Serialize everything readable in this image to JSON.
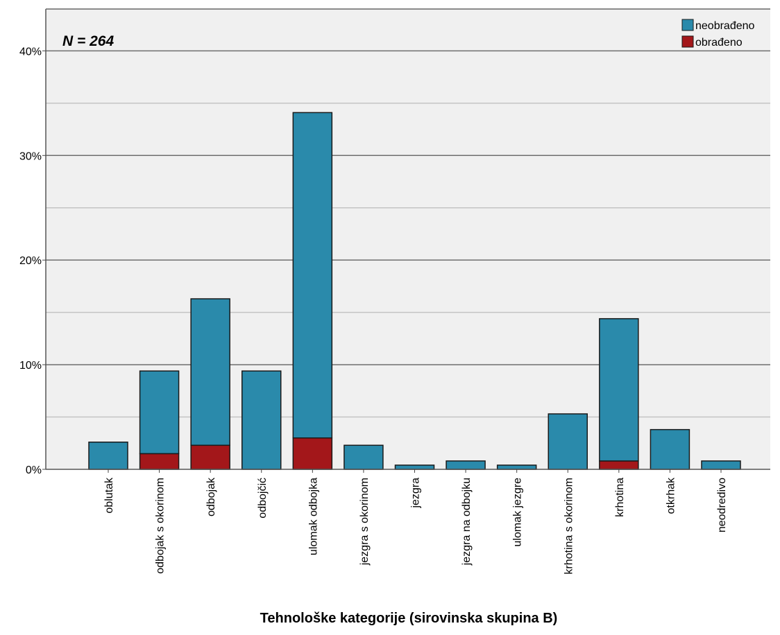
{
  "chart_data": {
    "type": "bar",
    "stacked": true,
    "annotation": "N = 264",
    "xlabel": "Tehnološke kategorije (sirovinska skupina B)",
    "ylabel": "",
    "ylim": [
      0,
      44
    ],
    "y_ticks": [
      0,
      10,
      20,
      30,
      40
    ],
    "y_tick_labels": [
      "0%",
      "10%",
      "20%",
      "30%",
      "40%"
    ],
    "grid": true,
    "legend_position": "top-right",
    "categories": [
      "oblutak",
      "odbojak s okorinom",
      "odbojak",
      "odbojčić",
      "ulomak odbojka",
      "jezgra s okorinom",
      "jezgra",
      "jezgra na odbojku",
      "ulomak jezgre",
      "krhotina s okorinom",
      "krhotina",
      "otkrhak",
      "neodredivo"
    ],
    "series": [
      {
        "name": "obrađeno",
        "color": "#a3171a",
        "values": [
          0,
          1.5,
          2.3,
          0,
          3.0,
          0,
          0,
          0,
          0,
          0,
          0.8,
          0,
          0
        ]
      },
      {
        "name": "neobrađeno",
        "color": "#2a8aab",
        "values": [
          2.6,
          7.9,
          14.0,
          9.4,
          31.1,
          2.3,
          0.4,
          0.8,
          0.4,
          5.3,
          13.6,
          3.8,
          0.8
        ]
      }
    ],
    "legend_order": [
      "neobrađeno",
      "obrađeno"
    ]
  }
}
